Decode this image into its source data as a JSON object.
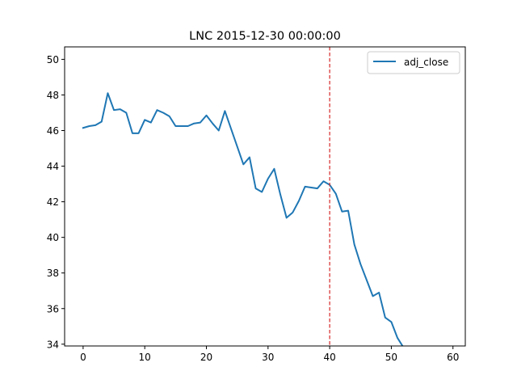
{
  "chart_data": {
    "type": "line",
    "title": "LNC 2015-12-30 00:00:00",
    "xlabel": "",
    "ylabel": "",
    "xlim": [
      -3,
      62
    ],
    "ylim": [
      33.9,
      50.7
    ],
    "x_ticks": [
      0,
      10,
      20,
      30,
      40,
      50,
      60
    ],
    "y_ticks": [
      34,
      36,
      38,
      40,
      42,
      44,
      46,
      48,
      50
    ],
    "grid": false,
    "legend_position": "top-right",
    "series": [
      {
        "name": "adj_close",
        "color": "#1f77b4",
        "x": [
          0,
          1,
          2,
          3,
          4,
          5,
          6,
          7,
          8,
          9,
          10,
          11,
          12,
          13,
          14,
          15,
          16,
          17,
          18,
          19,
          20,
          21,
          22,
          23,
          24,
          25,
          26,
          27,
          28,
          29,
          30,
          31,
          32,
          33,
          34,
          35,
          36,
          37,
          38,
          39,
          40,
          41,
          42,
          43,
          44,
          45,
          46,
          47,
          48,
          49,
          50,
          51,
          52
        ],
        "y": [
          46.15,
          46.25,
          46.3,
          46.5,
          48.1,
          47.15,
          47.2,
          47.0,
          45.85,
          45.85,
          46.6,
          46.45,
          47.15,
          47.0,
          46.8,
          46.25,
          46.25,
          46.25,
          46.4,
          46.45,
          46.85,
          46.4,
          46.0,
          47.1,
          46.1,
          45.1,
          44.1,
          44.5,
          42.75,
          42.55,
          43.3,
          43.85,
          42.4,
          41.1,
          41.4,
          42.05,
          42.85,
          42.8,
          42.75,
          43.15,
          42.95,
          42.45,
          41.45,
          41.5,
          39.6,
          38.5,
          37.6,
          36.7,
          36.9,
          35.5,
          35.25,
          34.35,
          33.8
        ]
      }
    ],
    "reference_lines": [
      {
        "orientation": "vertical",
        "x": 40,
        "color": "#d62728",
        "style": "dashed"
      }
    ]
  }
}
